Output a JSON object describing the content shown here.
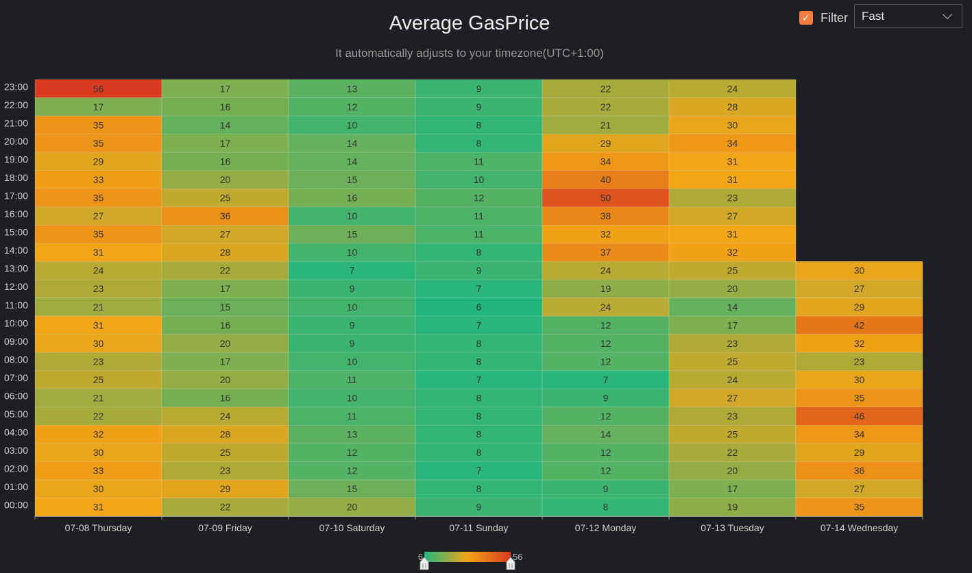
{
  "title": "Average GasPrice",
  "subtitle": "It automatically adjusts to your timezone(UTC+1:00)",
  "filter": {
    "label": "Filter",
    "checked": true,
    "selected": "Fast"
  },
  "colors": {
    "background": "#1e1f22",
    "scale_low": "#22b67e",
    "scale_mid": "#f2a516",
    "scale_high": "#d93b20",
    "checkbox": "#f47c3c"
  },
  "chart_data": {
    "type": "heatmap",
    "x_categories": [
      "07-08 Thursday",
      "07-09 Friday",
      "07-10 Saturday",
      "07-11 Sunday",
      "07-12 Monday",
      "07-13 Tuesday",
      "07-14 Wednesday"
    ],
    "y_categories": [
      "00:00",
      "01:00",
      "02:00",
      "03:00",
      "04:00",
      "05:00",
      "06:00",
      "07:00",
      "08:00",
      "09:00",
      "10:00",
      "11:00",
      "12:00",
      "13:00",
      "14:00",
      "15:00",
      "16:00",
      "17:00",
      "18:00",
      "19:00",
      "20:00",
      "21:00",
      "22:00",
      "23:00"
    ],
    "values": [
      [
        31,
        30,
        33,
        30,
        32,
        22,
        21,
        25,
        23,
        30,
        31,
        21,
        23,
        24,
        31,
        35,
        27,
        35,
        33,
        29,
        35,
        35,
        17,
        56
      ],
      [
        22,
        29,
        23,
        25,
        28,
        24,
        16,
        20,
        17,
        20,
        16,
        15,
        17,
        22,
        28,
        27,
        36,
        25,
        20,
        16,
        17,
        14,
        16,
        17
      ],
      [
        20,
        15,
        12,
        12,
        13,
        11,
        10,
        11,
        10,
        9,
        9,
        10,
        9,
        7,
        10,
        15,
        10,
        16,
        15,
        14,
        14,
        10,
        12,
        13
      ],
      [
        9,
        8,
        7,
        8,
        8,
        8,
        8,
        7,
        8,
        8,
        7,
        6,
        7,
        9,
        8,
        11,
        11,
        12,
        10,
        11,
        8,
        8,
        9,
        9
      ],
      [
        8,
        9,
        12,
        12,
        14,
        12,
        9,
        7,
        12,
        12,
        12,
        24,
        19,
        24,
        37,
        32,
        38,
        50,
        40,
        34,
        29,
        21,
        22,
        22
      ],
      [
        19,
        17,
        20,
        22,
        25,
        23,
        27,
        24,
        25,
        23,
        17,
        14,
        20,
        25,
        32,
        31,
        27,
        23,
        31,
        31,
        34,
        30,
        28,
        24
      ],
      [
        35,
        27,
        36,
        29,
        34,
        46,
        35,
        30,
        23,
        32,
        42,
        29,
        27,
        30,
        null,
        null,
        null,
        null,
        null,
        null,
        null,
        null,
        null,
        null
      ]
    ],
    "visual_map": {
      "min": 6,
      "max": 56
    }
  }
}
